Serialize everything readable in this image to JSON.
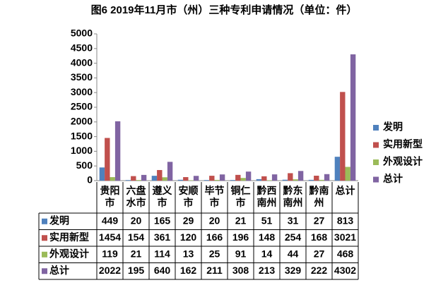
{
  "chart_data": {
    "type": "bar",
    "title": "图6 2019年11月市（州）三种专利申请情况（单位：件）",
    "categories": [
      "贵阳市",
      "六盘水市",
      "遵义市",
      "安顺市",
      "毕节市",
      "铜仁市",
      "黔西南州",
      "黔东南州",
      "黔南州",
      "总计"
    ],
    "series": [
      {
        "name": "发明",
        "color": "#4f81bd",
        "values": [
          449,
          20,
          165,
          29,
          20,
          21,
          51,
          31,
          27,
          813
        ]
      },
      {
        "name": "实用新型",
        "color": "#c0504d",
        "values": [
          1454,
          154,
          361,
          120,
          166,
          196,
          148,
          254,
          168,
          3021
        ]
      },
      {
        "name": "外观设计",
        "color": "#9bbb59",
        "values": [
          119,
          21,
          114,
          13,
          25,
          91,
          14,
          44,
          27,
          468
        ]
      },
      {
        "name": "总计",
        "color": "#8064a2",
        "values": [
          2022,
          195,
          640,
          162,
          211,
          308,
          213,
          329,
          222,
          4302
        ]
      }
    ],
    "ylim": [
      0,
      5000
    ],
    "yticks": [
      0,
      500,
      1000,
      1500,
      2000,
      2500,
      3000,
      3500,
      4000,
      4500,
      5000
    ],
    "legend": "right",
    "data_table": true
  }
}
